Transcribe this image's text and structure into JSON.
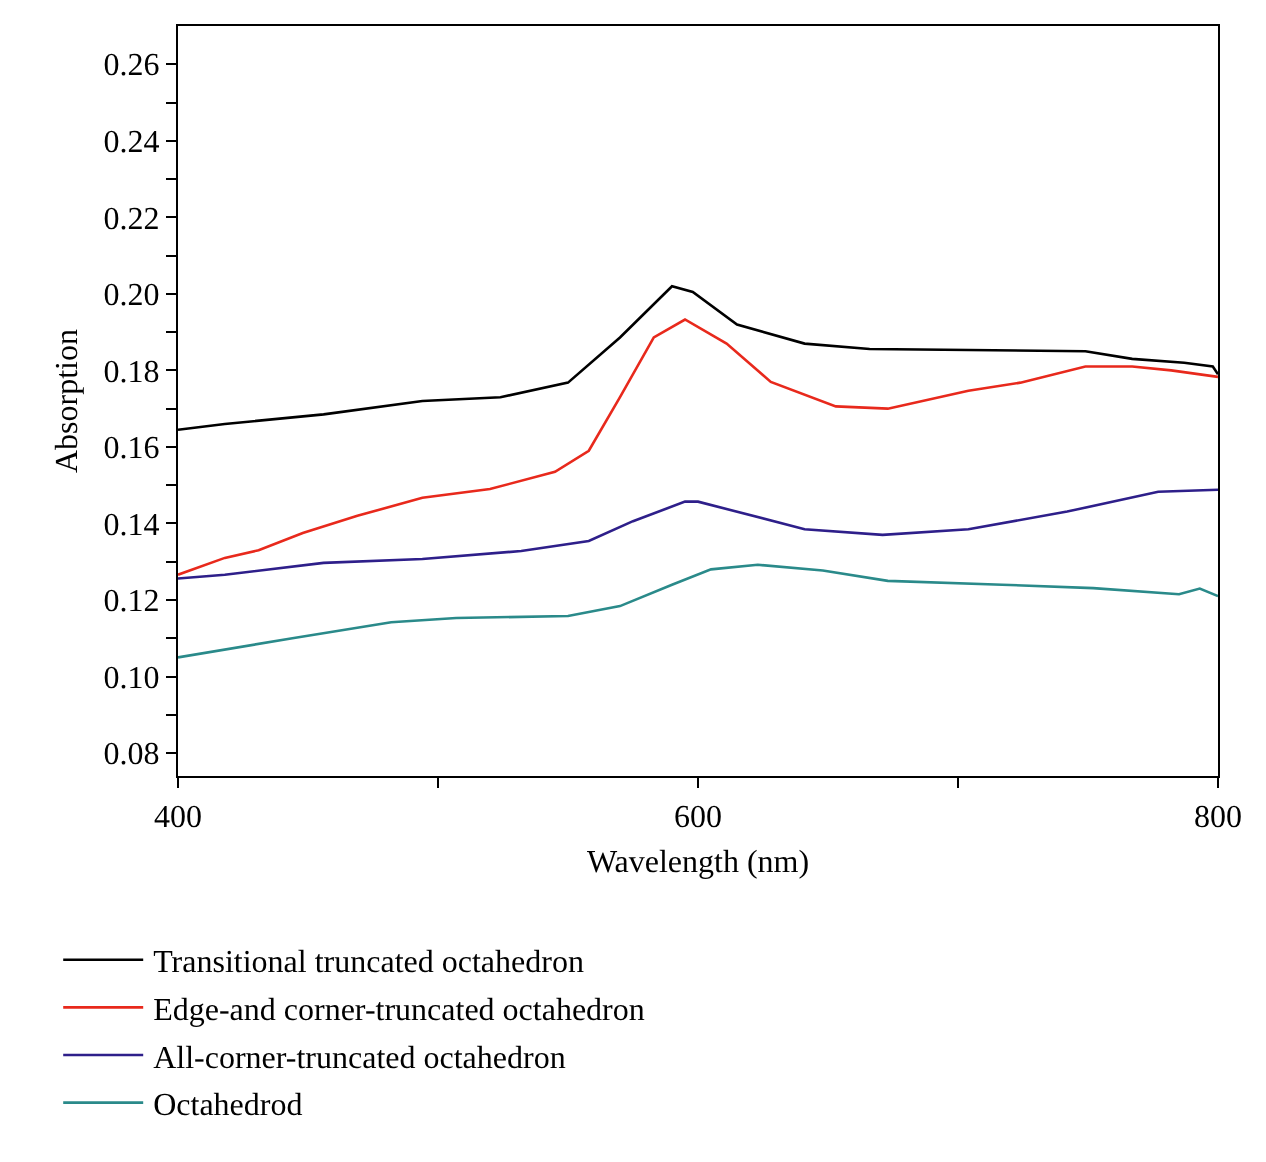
{
  "chart_data": {
    "type": "line",
    "xlabel": "Wavelength (nm)",
    "ylabel": "Absorption",
    "xlim": [
      400,
      800
    ],
    "xticks": [
      400,
      {
        "value": 500,
        "label": null
      },
      600,
      {
        "value": 700,
        "label": null
      },
      800
    ],
    "ylim": [
      0.074,
      0.27
    ],
    "yticks": [
      0.08,
      {
        "value": 0.09,
        "label": null
      },
      {
        "value": 0.1,
        "label": "0.10"
      },
      {
        "value": 0.11,
        "label": null
      },
      0.12,
      {
        "value": 0.13,
        "label": null
      },
      0.14,
      {
        "value": 0.15,
        "label": null
      },
      0.16,
      {
        "value": 0.17,
        "label": null
      },
      0.18,
      {
        "value": 0.19,
        "label": null
      },
      {
        "value": 0.2,
        "label": "0.20"
      },
      {
        "value": 0.21,
        "label": null
      },
      0.22,
      {
        "value": 0.23,
        "label": null
      },
      0.24,
      {
        "value": 0.25,
        "label": null
      },
      0.26
    ],
    "legend": "bottom",
    "marker": "none",
    "line_style": "solid",
    "series": [
      {
        "name": "Transitional truncated octahedron",
        "color": "#000000",
        "x": [
          400,
          418,
          456,
          494,
          524,
          550,
          570,
          590,
          598,
          615,
          641,
          666,
          749,
          767,
          787,
          798,
          800
        ],
        "values": [
          0.1645,
          0.166,
          0.1685,
          0.172,
          0.173,
          0.1768,
          0.1886,
          0.202,
          0.2005,
          0.192,
          0.187,
          0.1856,
          0.185,
          0.183,
          0.182,
          0.181,
          0.179
        ]
      },
      {
        "name": "Edge-and corner-truncated octahedron",
        "color": "#e8291c",
        "x": [
          400,
          418,
          431,
          448,
          469,
          494,
          520,
          545,
          558,
          570,
          583,
          595,
          611,
          628,
          653,
          673,
          704,
          724,
          749,
          767,
          782,
          800
        ],
        "values": [
          0.1266,
          0.131,
          0.133,
          0.1375,
          0.142,
          0.1467,
          0.149,
          0.1535,
          0.159,
          0.173,
          0.1886,
          0.1933,
          0.187,
          0.177,
          0.1706,
          0.17,
          0.1747,
          0.1768,
          0.181,
          0.181,
          0.18,
          0.1783
        ]
      },
      {
        "name": "All-corner-truncated octahedron",
        "color": "#2e1f8a",
        "x": [
          400,
          418,
          456,
          494,
          532,
          558,
          575,
          595,
          600,
          641,
          671,
          704,
          742,
          777,
          800
        ],
        "values": [
          0.1256,
          0.1266,
          0.1297,
          0.1307,
          0.1328,
          0.1354,
          0.1406,
          0.1457,
          0.1457,
          0.1385,
          0.137,
          0.1385,
          0.1431,
          0.1483,
          0.1488
        ]
      },
      {
        "name": "Octahedrod",
        "color": "#2a8a8a",
        "x": [
          400,
          444,
          482,
          507,
          550,
          570,
          590,
          605,
          623,
          648,
          673,
          717,
          752,
          785,
          793,
          800
        ],
        "values": [
          0.105,
          0.11,
          0.1142,
          0.1153,
          0.1158,
          0.1184,
          0.124,
          0.128,
          0.1292,
          0.1277,
          0.125,
          0.124,
          0.1231,
          0.1215,
          0.123,
          0.121
        ]
      }
    ]
  }
}
